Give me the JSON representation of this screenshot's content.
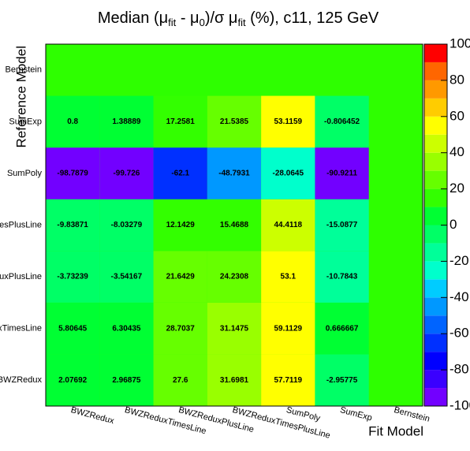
{
  "chart_data": {
    "type": "heatmap",
    "title": [
      "Median (μ",
      "fit",
      " - μ",
      "0",
      ")/σ μ",
      "fit",
      " (%), c11, 125 GeV"
    ],
    "x_label": "Fit Model",
    "y_label": "Reference Model",
    "x_categories": [
      "BWZRedux",
      "BWZReduxTimesLine",
      "BWZReduxPlusLine",
      "BWZReduxTimesPlusLine",
      "SumPoly",
      "SumExp",
      "Bernstein"
    ],
    "y_categories": [
      "BWZRedux",
      "BWZReduxTimesLine",
      "BWZReduxPlusLine",
      "BWZReduxTimesPlusLine",
      "SumPoly",
      "SumExp",
      "Bernstein"
    ],
    "z": [
      [
        2.07692,
        2.96875,
        27.6,
        31.6981,
        57.7119,
        -2.95775,
        null
      ],
      [
        5.80645,
        6.30435,
        28.7037,
        31.1475,
        59.1129,
        0.666667,
        null
      ],
      [
        -3.73239,
        -3.54167,
        21.6429,
        24.2308,
        53.1,
        -10.7843,
        null
      ],
      [
        -9.83871,
        -8.03279,
        12.1429,
        15.4688,
        44.4118,
        -15.0877,
        null
      ],
      [
        -98.7879,
        -99.726,
        -62.1,
        -48.7931,
        -28.0645,
        -90.9211,
        null
      ],
      [
        0.8,
        1.38889,
        17.2581,
        21.5385,
        53.1159,
        -0.806452,
        null
      ],
      [
        null,
        null,
        null,
        null,
        null,
        null,
        null
      ]
    ],
    "zlim": [
      -100,
      100
    ],
    "zticks": [
      -100,
      -80,
      -60,
      -40,
      -20,
      0,
      20,
      40,
      60,
      80,
      100
    ],
    "palette": [
      "#7200ff",
      "#3a00ff",
      "#0000ff",
      "#0030ff",
      "#0064ff",
      "#0098ff",
      "#00ccff",
      "#00ffcc",
      "#00ff99",
      "#00ff66",
      "#00ff33",
      "#33ff00",
      "#66ff00",
      "#99ff00",
      "#ccff00",
      "#ffff00",
      "#ffcc00",
      "#ff9900",
      "#ff6600",
      "#ff0000"
    ],
    "frame_color": "#2eff00"
  }
}
